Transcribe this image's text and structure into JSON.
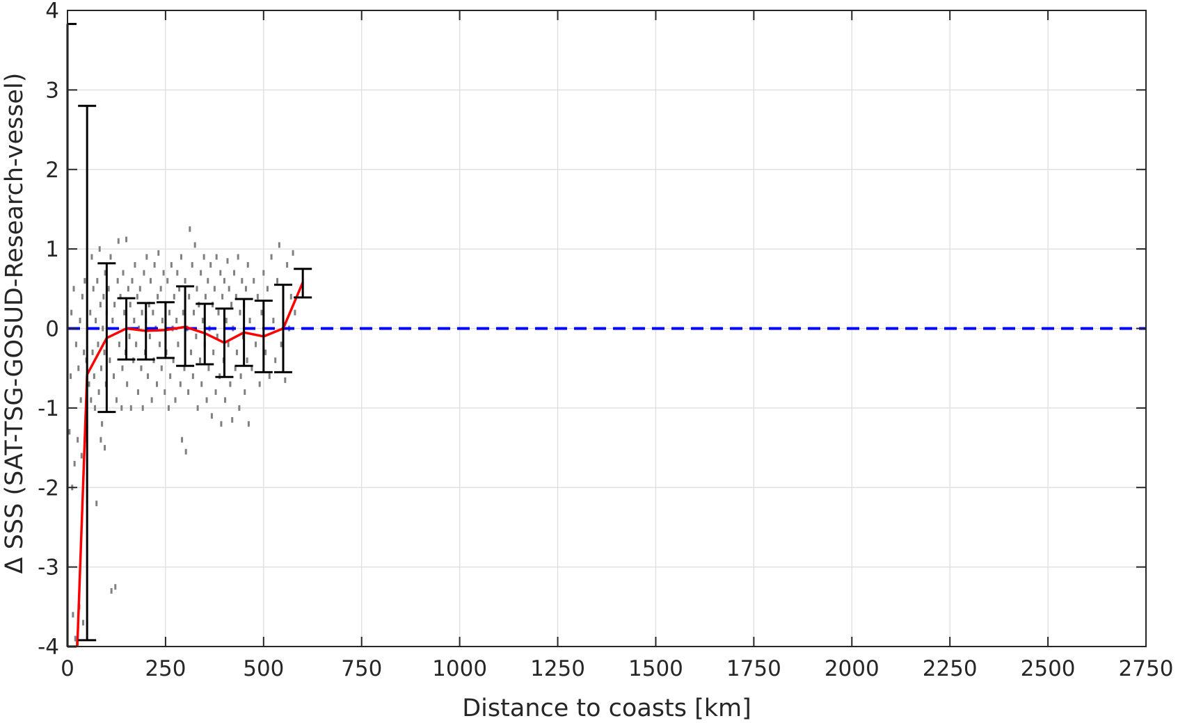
{
  "chart_data": {
    "type": "scatter",
    "title": "",
    "xlabel": "Distance to coasts [km]",
    "ylabel": "Δ SSS (SAT-TSG-GOSUD-Research-vessel)",
    "xlim": [
      0,
      2750
    ],
    "ylim": [
      -4,
      4
    ],
    "xticks": [
      0,
      250,
      500,
      750,
      1000,
      1250,
      1500,
      1750,
      2000,
      2250,
      2500,
      2750
    ],
    "yticks": [
      -4,
      -3,
      -2,
      -1,
      0,
      1,
      2,
      3,
      4
    ],
    "grid": true,
    "legend": "none",
    "colors": {
      "scatter": "#808080",
      "mean_line": "#ff0000",
      "zero_line": "#0000ff",
      "error_bars": "#000000",
      "grid": "#dcdcdc",
      "axes": "#262626"
    },
    "reference_line": {
      "y": 0,
      "style": "dashed"
    },
    "mean_line": {
      "x": [
        25,
        50,
        100,
        150,
        200,
        250,
        300,
        350,
        400,
        450,
        500,
        550,
        600
      ],
      "y": [
        -4.0,
        -0.58,
        -0.12,
        0.0,
        -0.03,
        -0.02,
        0.02,
        -0.06,
        -0.18,
        -0.05,
        -0.1,
        0.0,
        0.58
      ]
    },
    "error_bars": [
      {
        "x": 0,
        "low": -4.0,
        "high": 3.83
      },
      {
        "x": 50,
        "low": -3.92,
        "high": 2.8
      },
      {
        "x": 100,
        "low": -1.05,
        "high": 0.82
      },
      {
        "x": 150,
        "low": -0.39,
        "high": 0.38
      },
      {
        "x": 200,
        "low": -0.39,
        "high": 0.32
      },
      {
        "x": 250,
        "low": -0.37,
        "high": 0.33
      },
      {
        "x": 300,
        "low": -0.47,
        "high": 0.53
      },
      {
        "x": 350,
        "low": -0.45,
        "high": 0.31
      },
      {
        "x": 400,
        "low": -0.61,
        "high": 0.25
      },
      {
        "x": 450,
        "low": -0.47,
        "high": 0.37
      },
      {
        "x": 500,
        "low": -0.55,
        "high": 0.35
      },
      {
        "x": 550,
        "low": -0.55,
        "high": 0.55
      },
      {
        "x": 600,
        "low": 0.39,
        "high": 0.75
      }
    ],
    "scatter_points": [
      [
        5,
        -1.3
      ],
      [
        8,
        -0.6
      ],
      [
        10,
        0.2
      ],
      [
        12,
        -2.0
      ],
      [
        14,
        -3.6
      ],
      [
        16,
        0.5
      ],
      [
        18,
        -1.7
      ],
      [
        20,
        -3.9
      ],
      [
        22,
        -0.2
      ],
      [
        24,
        -3.95
      ],
      [
        26,
        -1.4
      ],
      [
        28,
        -0.5
      ],
      [
        30,
        -3.5
      ],
      [
        32,
        0.1
      ],
      [
        34,
        -0.9
      ],
      [
        36,
        -1.6
      ],
      [
        38,
        0.4
      ],
      [
        40,
        -3.7
      ],
      [
        42,
        -0.3
      ],
      [
        44,
        0.6
      ],
      [
        46,
        -1.1
      ],
      [
        48,
        -0.4
      ],
      [
        55,
        -0.7
      ],
      [
        58,
        0.2
      ],
      [
        60,
        -0.9
      ],
      [
        62,
        0.9
      ],
      [
        64,
        -0.3
      ],
      [
        66,
        0.5
      ],
      [
        68,
        -0.6
      ],
      [
        70,
        -1.0
      ],
      [
        72,
        0.1
      ],
      [
        74,
        -2.2
      ],
      [
        76,
        0.6
      ],
      [
        78,
        -0.2
      ],
      [
        80,
        -0.8
      ],
      [
        82,
        1.0
      ],
      [
        84,
        0.3
      ],
      [
        86,
        -0.5
      ],
      [
        88,
        -1.2
      ],
      [
        90,
        0.0
      ],
      [
        92,
        0.4
      ],
      [
        94,
        -0.3
      ],
      [
        96,
        0.7
      ],
      [
        98,
        -0.7
      ],
      [
        100,
        0.2
      ],
      [
        85,
        -1.4
      ],
      [
        95,
        -1.5
      ],
      [
        105,
        0.5
      ],
      [
        108,
        -0.4
      ],
      [
        110,
        0.9
      ],
      [
        112,
        -3.3
      ],
      [
        115,
        0.1
      ],
      [
        118,
        -0.6
      ],
      [
        120,
        0.3
      ],
      [
        122,
        -3.25
      ],
      [
        125,
        -0.9
      ],
      [
        128,
        0.6
      ],
      [
        130,
        1.1
      ],
      [
        132,
        -0.2
      ],
      [
        135,
        0.4
      ],
      [
        138,
        -1.0
      ],
      [
        140,
        -0.5
      ],
      [
        142,
        0.7
      ],
      [
        145,
        0.2
      ],
      [
        148,
        -0.3
      ],
      [
        150,
        1.12
      ],
      [
        152,
        -0.7
      ],
      [
        155,
        0.5
      ],
      [
        158,
        -0.1
      ],
      [
        160,
        0.3
      ],
      [
        162,
        -1.0
      ],
      [
        165,
        0.6
      ],
      [
        168,
        -0.4
      ],
      [
        170,
        0.1
      ],
      [
        172,
        0.8
      ],
      [
        175,
        -0.2
      ],
      [
        178,
        0.4
      ],
      [
        180,
        -0.8
      ],
      [
        182,
        0.0
      ],
      [
        185,
        0.5
      ],
      [
        188,
        -0.5
      ],
      [
        190,
        0.2
      ],
      [
        192,
        -1.0
      ],
      [
        195,
        0.7
      ],
      [
        198,
        -0.3
      ],
      [
        200,
        0.1
      ],
      [
        202,
        0.9
      ],
      [
        205,
        -0.6
      ],
      [
        208,
        0.3
      ],
      [
        210,
        -0.1
      ],
      [
        212,
        0.6
      ],
      [
        215,
        -0.9
      ],
      [
        218,
        0.2
      ],
      [
        220,
        -0.4
      ],
      [
        222,
        0.8
      ],
      [
        225,
        0.0
      ],
      [
        228,
        -0.7
      ],
      [
        230,
        0.4
      ],
      [
        232,
        0.95
      ],
      [
        235,
        -0.2
      ],
      [
        238,
        0.5
      ],
      [
        240,
        -0.5
      ],
      [
        242,
        0.1
      ],
      [
        245,
        0.7
      ],
      [
        248,
        -0.8
      ],
      [
        250,
        0.3
      ],
      [
        252,
        -0.3
      ],
      [
        255,
        0.6
      ],
      [
        258,
        -1.0
      ],
      [
        260,
        0.2
      ],
      [
        262,
        -0.6
      ],
      [
        265,
        0.8
      ],
      [
        268,
        0.0
      ],
      [
        270,
        -0.4
      ],
      [
        272,
        0.4
      ],
      [
        275,
        -0.9
      ],
      [
        278,
        0.1
      ],
      [
        280,
        0.7
      ],
      [
        282,
        -0.2
      ],
      [
        285,
        0.5
      ],
      [
        288,
        -0.7
      ],
      [
        290,
        0.9
      ],
      [
        292,
        -1.4
      ],
      [
        295,
        0.2
      ],
      [
        298,
        -0.5
      ],
      [
        300,
        0.6
      ],
      [
        302,
        -1.55
      ],
      [
        305,
        0.0
      ],
      [
        308,
        -0.8
      ],
      [
        310,
        0.4
      ],
      [
        312,
        1.25
      ],
      [
        315,
        -0.3
      ],
      [
        318,
        0.8
      ],
      [
        320,
        -0.6
      ],
      [
        322,
        0.2
      ],
      [
        325,
        1.05
      ],
      [
        328,
        -0.1
      ],
      [
        330,
        0.5
      ],
      [
        332,
        -1.0
      ],
      [
        335,
        0.3
      ],
      [
        338,
        -0.4
      ],
      [
        340,
        0.7
      ],
      [
        342,
        -0.7
      ],
      [
        345,
        0.1
      ],
      [
        348,
        0.9
      ],
      [
        350,
        -0.2
      ],
      [
        352,
        0.4
      ],
      [
        355,
        -0.9
      ],
      [
        358,
        0.6
      ],
      [
        360,
        -0.5
      ],
      [
        362,
        0.0
      ],
      [
        365,
        0.8
      ],
      [
        368,
        -1.1
      ],
      [
        370,
        0.3
      ],
      [
        372,
        -0.3
      ],
      [
        375,
        0.5
      ],
      [
        378,
        -0.8
      ],
      [
        380,
        0.9
      ],
      [
        382,
        -0.1
      ],
      [
        385,
        0.2
      ],
      [
        388,
        -0.6
      ],
      [
        390,
        0.7
      ],
      [
        392,
        -1.2
      ],
      [
        395,
        0.4
      ],
      [
        398,
        -0.4
      ],
      [
        400,
        0.6
      ],
      [
        402,
        -0.9
      ],
      [
        405,
        0.1
      ],
      [
        408,
        0.85
      ],
      [
        410,
        -0.2
      ],
      [
        412,
        0.5
      ],
      [
        415,
        -0.7
      ],
      [
        418,
        0.3
      ],
      [
        420,
        -1.15
      ],
      [
        422,
        0.0
      ],
      [
        425,
        0.7
      ],
      [
        428,
        -0.5
      ],
      [
        430,
        0.4
      ],
      [
        432,
        -0.3
      ],
      [
        435,
        0.9
      ],
      [
        438,
        -1.0
      ],
      [
        440,
        0.2
      ],
      [
        442,
        -0.6
      ],
      [
        445,
        0.6
      ],
      [
        448,
        -0.1
      ],
      [
        450,
        0.3
      ],
      [
        452,
        -0.8
      ],
      [
        455,
        0.5
      ],
      [
        458,
        -0.4
      ],
      [
        460,
        0.8
      ],
      [
        462,
        -1.2
      ],
      [
        465,
        0.1
      ],
      [
        470,
        -0.5
      ],
      [
        475,
        0.6
      ],
      [
        480,
        -0.2
      ],
      [
        485,
        0.4
      ],
      [
        490,
        -0.7
      ],
      [
        495,
        0.2
      ],
      [
        500,
        0.7
      ],
      [
        505,
        -0.3
      ],
      [
        510,
        0.5
      ],
      [
        515,
        -0.6
      ],
      [
        520,
        0.9
      ],
      [
        525,
        0.1
      ],
      [
        530,
        -0.4
      ],
      [
        535,
        0.6
      ],
      [
        540,
        1.05
      ],
      [
        545,
        -0.2
      ],
      [
        550,
        0.3
      ],
      [
        555,
        -0.65
      ],
      [
        560,
        0.8
      ],
      [
        565,
        0.0
      ],
      [
        570,
        0.4
      ],
      [
        575,
        0.95
      ],
      [
        580,
        0.2
      ]
    ]
  }
}
